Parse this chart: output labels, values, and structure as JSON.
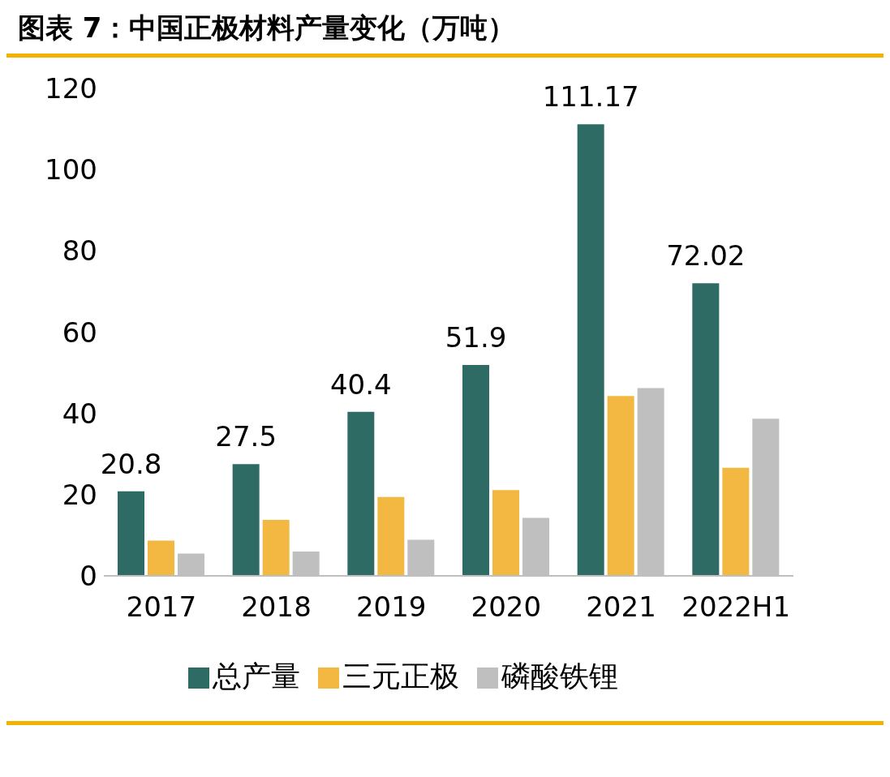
{
  "chart_data": {
    "type": "bar",
    "title": "图表 7：中国正极材料产量变化（万吨）",
    "categories": [
      "2017",
      "2018",
      "2019",
      "2020",
      "2021",
      "2022H1"
    ],
    "series": [
      {
        "name": "总产量",
        "color": "#2e6b65",
        "values": [
          20.8,
          27.5,
          40.4,
          51.9,
          111.17,
          72.02
        ],
        "value_labels": [
          "20.8",
          "27.5",
          "40.4",
          "51.9",
          "111.17",
          "72.02"
        ]
      },
      {
        "name": "三元正极",
        "color": "#f2b841",
        "values": [
          8.7,
          13.8,
          19.4,
          21.1,
          44.3,
          26.6
        ]
      },
      {
        "name": "磷酸铁锂",
        "color": "#bfbfbf",
        "values": [
          5.5,
          6.0,
          8.9,
          14.3,
          46.2,
          38.7
        ]
      }
    ],
    "ylim": [
      0,
      120
    ],
    "yticks": [
      0,
      20,
      40,
      60,
      80,
      100,
      120
    ],
    "grid": false,
    "legend": "bottom"
  }
}
